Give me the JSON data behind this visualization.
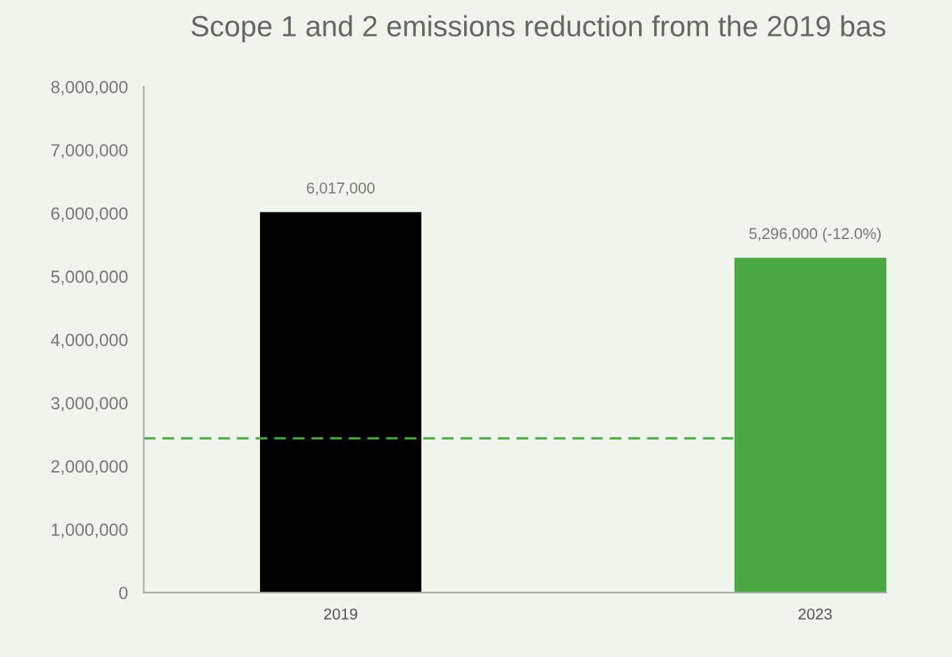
{
  "chart_data": {
    "type": "bar",
    "title": "Scope 1 and 2 emissions reduction from the 2019 bas",
    "categories": [
      "2019",
      "2023"
    ],
    "values": [
      6017000,
      5296000
    ],
    "colors": [
      "#000000",
      "#4aa843"
    ],
    "value_labels": [
      "6,017,000",
      "5,296,000 (-12.0%)"
    ],
    "ylim": [
      0,
      8000000
    ],
    "yticks": [
      {
        "value": 0,
        "label": "0"
      },
      {
        "value": 1000000,
        "label": "1,000,000"
      },
      {
        "value": 2000000,
        "label": "2,000,000"
      },
      {
        "value": 3000000,
        "label": "3,000,000"
      },
      {
        "value": 4000000,
        "label": "4,000,000"
      },
      {
        "value": 5000000,
        "label": "5,000,000"
      },
      {
        "value": 6000000,
        "label": "6,000,000"
      },
      {
        "value": 7000000,
        "label": "7,000,000"
      },
      {
        "value": 8000000,
        "label": "8,000,000"
      }
    ],
    "ref_lines": [
      {
        "axis": "y",
        "value": 2440000,
        "color": "#4aa843",
        "line_style": "dashed"
      }
    ],
    "grid": false,
    "legend": false
  }
}
